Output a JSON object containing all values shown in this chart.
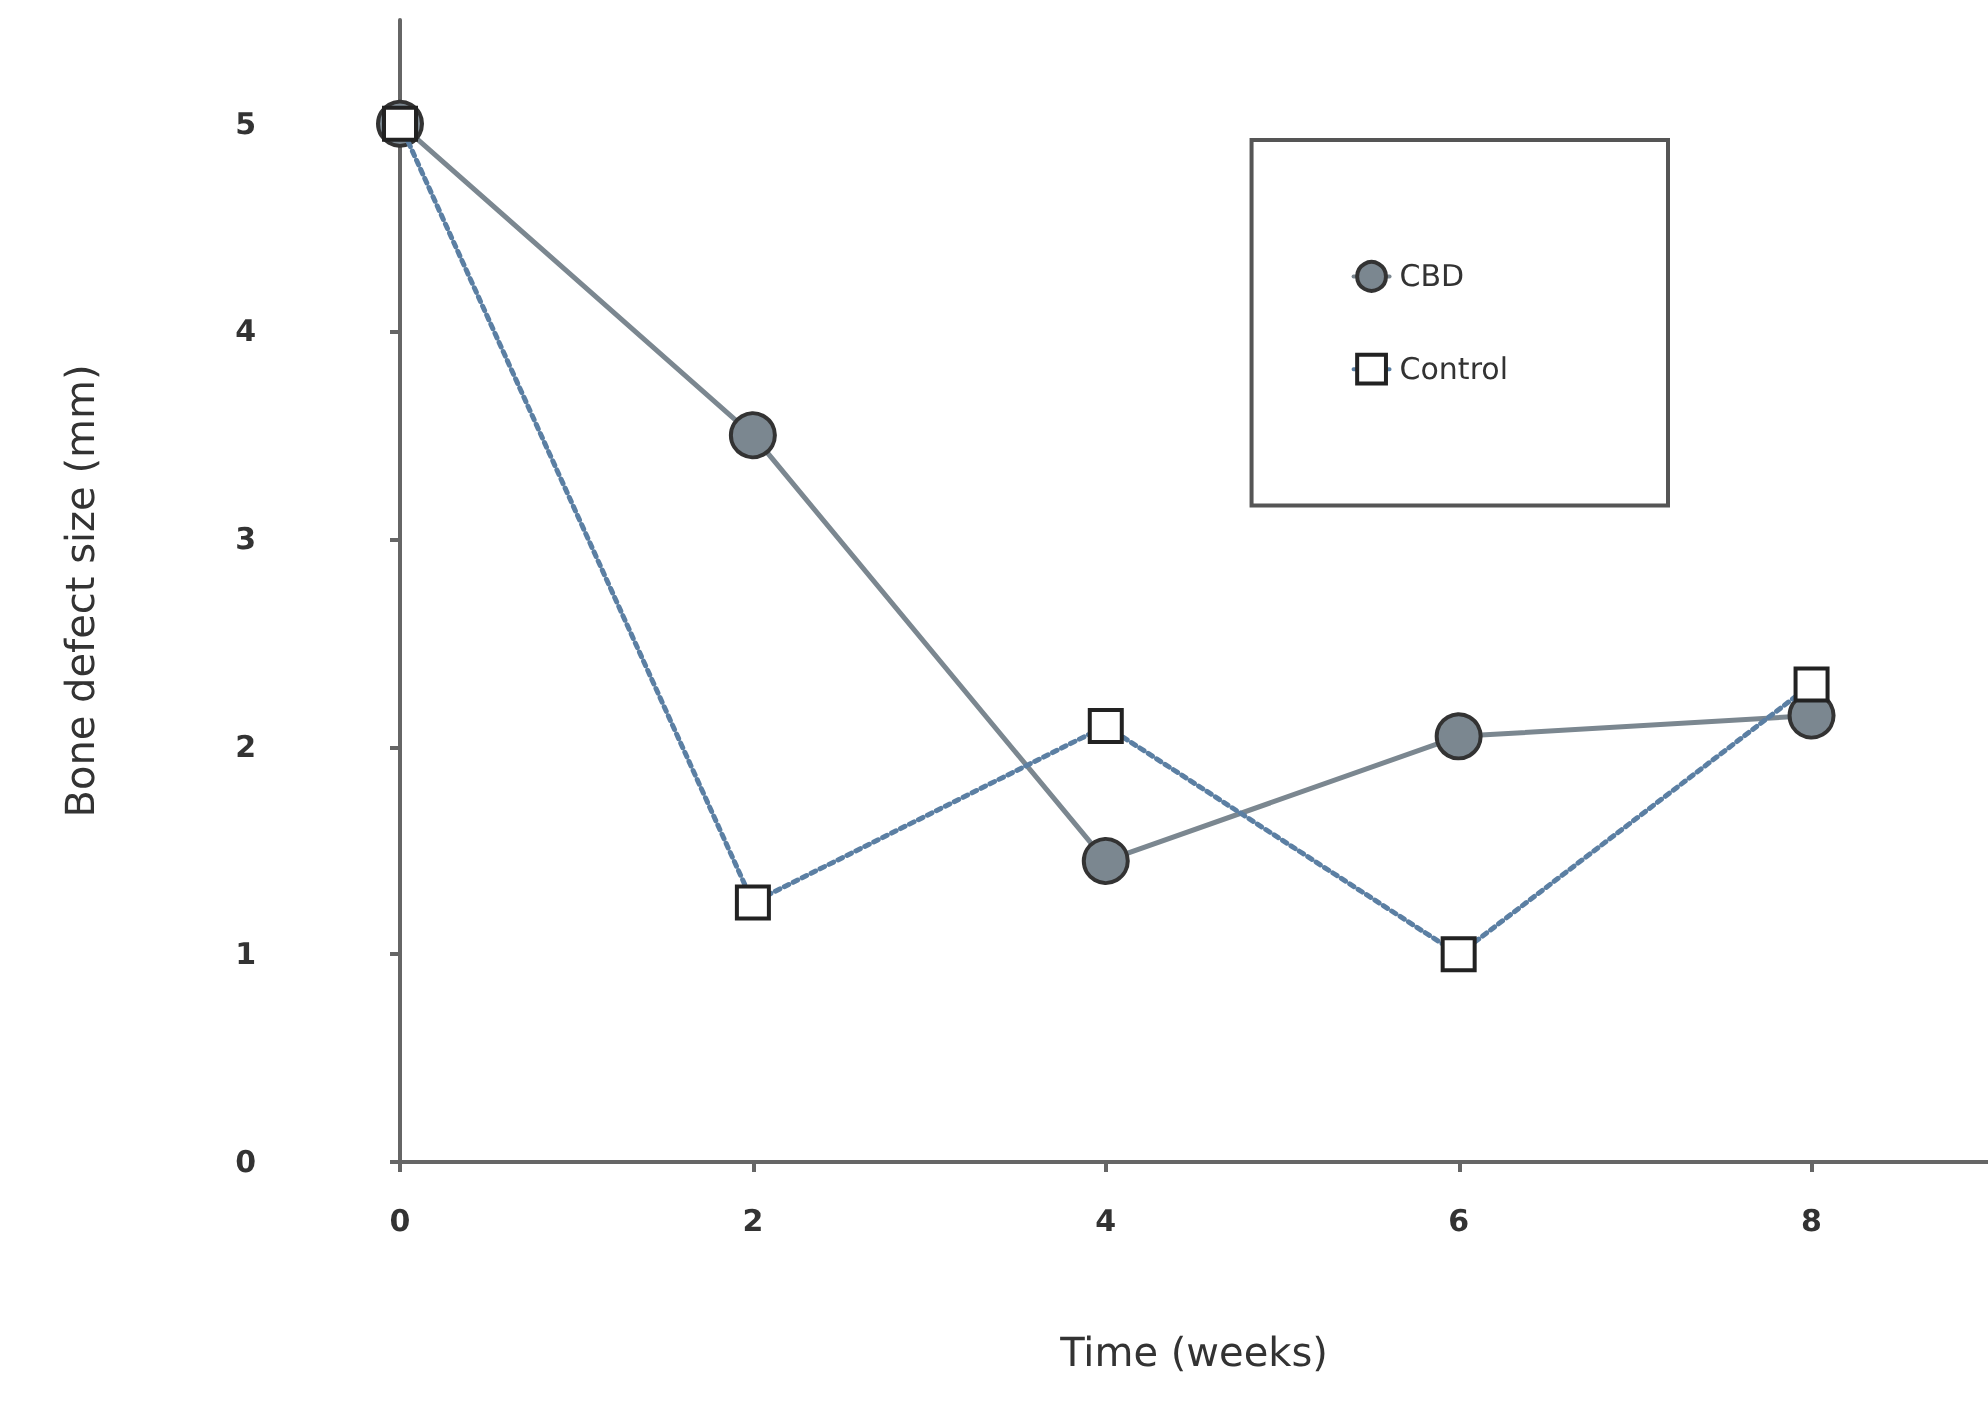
{
  "chart_data": {
    "type": "line",
    "xlabel": "Time (weeks)",
    "ylabel": "Bone defect size (mm)",
    "x": [
      0,
      2,
      4,
      6,
      8
    ],
    "xlim": [
      0,
      9
    ],
    "xticks": [
      0,
      2,
      4,
      6,
      8
    ],
    "ylim": [
      0,
      5.5
    ],
    "yticks": [
      0,
      1,
      2,
      3,
      4,
      5
    ],
    "grid": false,
    "legend": "top right",
    "series": [
      {
        "name": "CBD",
        "color": "#7b8790",
        "values": [
          5,
          3.5,
          1.45,
          2.05,
          2.15
        ],
        "marker": "circle",
        "line_style": "solid"
      },
      {
        "name": "Control",
        "color": "#5b7fa3",
        "values": [
          5,
          1.25,
          2.1,
          1.0,
          2.3
        ],
        "marker": "square",
        "line_style": "dotted"
      }
    ]
  }
}
